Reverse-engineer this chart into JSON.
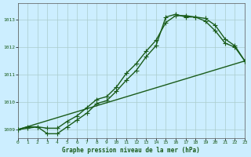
{
  "background_color": "#cceeff",
  "grid_color": "#aacccc",
  "line_color": "#1a5c1a",
  "xlim": [
    0,
    23
  ],
  "ylim": [
    1008.7,
    1013.6
  ],
  "yticks": [
    1009,
    1010,
    1011,
    1012,
    1013
  ],
  "xticks": [
    0,
    1,
    2,
    3,
    4,
    5,
    6,
    7,
    8,
    9,
    10,
    11,
    12,
    13,
    14,
    15,
    16,
    17,
    18,
    19,
    20,
    21,
    22,
    23
  ],
  "xlabel": "Graphe pression niveau de la mer (hPa)",
  "series1": {
    "x": [
      0,
      1,
      2,
      3,
      4,
      5,
      6,
      7,
      8,
      9,
      10,
      11,
      12,
      13,
      14,
      15,
      16,
      17,
      18,
      19,
      20,
      21,
      22,
      23
    ],
    "y": [
      1009.0,
      1009.05,
      1009.1,
      1008.85,
      1008.85,
      1009.1,
      1009.35,
      1009.6,
      1009.95,
      1010.05,
      1010.4,
      1010.8,
      1011.15,
      1011.65,
      1012.05,
      1013.1,
      1013.2,
      1013.1,
      1013.1,
      1012.95,
      1012.6,
      1012.15,
      1012.0,
      1011.5
    ]
  },
  "series2": {
    "x": [
      0,
      1,
      2,
      3,
      4,
      5,
      6,
      7,
      8,
      9,
      10,
      11,
      12,
      13,
      14,
      15,
      16,
      17,
      18,
      19,
      20,
      21,
      22,
      23
    ],
    "y": [
      1009.0,
      1009.1,
      1009.1,
      1009.05,
      1009.05,
      1009.3,
      1009.5,
      1009.8,
      1010.1,
      1010.2,
      1010.55,
      1011.05,
      1011.4,
      1011.85,
      1012.25,
      1012.9,
      1013.15,
      1013.15,
      1013.1,
      1013.05,
      1012.8,
      1012.3,
      1012.05,
      1011.5
    ]
  },
  "series3": {
    "x": [
      0,
      23
    ],
    "y": [
      1009.0,
      1011.5
    ]
  }
}
